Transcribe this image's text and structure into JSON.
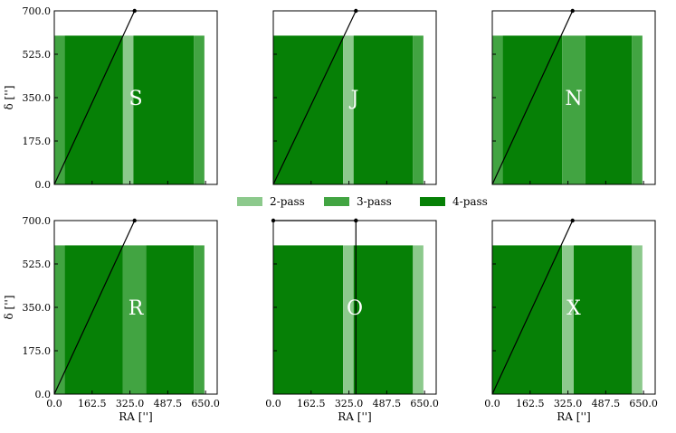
{
  "colors": {
    "two_pass": "#8cc98c",
    "three_pass": "#42a442",
    "four_pass": "#068006",
    "background": "#ffffff",
    "line": "#000000"
  },
  "legend": [
    {
      "label": "2-pass",
      "color": "#8cc98c"
    },
    {
      "label": "3-pass",
      "color": "#42a442"
    },
    {
      "label": "4-pass",
      "color": "#068006"
    }
  ],
  "chart_data": {
    "type": "area",
    "xlabel": "RA ['']",
    "ylabel": "δ ['']",
    "xlim": [
      0,
      700
    ],
    "ylim": [
      0,
      700
    ],
    "xticks": [
      "0.0",
      "162.5",
      "325.0",
      "487.5",
      "650.0"
    ],
    "yticks": [
      "0.0",
      "175.0",
      "350.0",
      "525.0",
      "700.0"
    ],
    "panels": [
      {
        "letter": "S",
        "fill_top": 600,
        "bands": [
          {
            "x0": 0,
            "x1": 45,
            "pass": 3
          },
          {
            "x0": 45,
            "x1": 295,
            "pass": 4
          },
          {
            "x0": 295,
            "x1": 340,
            "pass": 2
          },
          {
            "x0": 340,
            "x1": 600,
            "pass": 4
          },
          {
            "x0": 600,
            "x1": 645,
            "pass": 3
          }
        ],
        "line": [
          [
            0,
            0
          ],
          [
            345,
            700
          ]
        ]
      },
      {
        "letter": "J",
        "fill_top": 600,
        "bands": [
          {
            "x0": 0,
            "x1": 300,
            "pass": 4
          },
          {
            "x0": 300,
            "x1": 345,
            "pass": 2
          },
          {
            "x0": 345,
            "x1": 600,
            "pass": 4
          },
          {
            "x0": 600,
            "x1": 645,
            "pass": 3
          }
        ],
        "line": [
          [
            0,
            0
          ],
          [
            355,
            700
          ]
        ]
      },
      {
        "letter": "N",
        "fill_top": 600,
        "bands": [
          {
            "x0": 0,
            "x1": 45,
            "pass": 3
          },
          {
            "x0": 45,
            "x1": 300,
            "pass": 4
          },
          {
            "x0": 300,
            "x1": 400,
            "pass": 3
          },
          {
            "x0": 400,
            "x1": 600,
            "pass": 4
          },
          {
            "x0": 600,
            "x1": 645,
            "pass": 3
          }
        ],
        "line": [
          [
            0,
            0
          ],
          [
            345,
            700
          ]
        ]
      },
      {
        "letter": "R",
        "fill_top": 600,
        "bands": [
          {
            "x0": 0,
            "x1": 45,
            "pass": 3
          },
          {
            "x0": 45,
            "x1": 295,
            "pass": 4
          },
          {
            "x0": 295,
            "x1": 395,
            "pass": 3
          },
          {
            "x0": 395,
            "x1": 600,
            "pass": 4
          },
          {
            "x0": 600,
            "x1": 645,
            "pass": 3
          }
        ],
        "line": [
          [
            0,
            0
          ],
          [
            345,
            700
          ]
        ]
      },
      {
        "letter": "O",
        "fill_top": 600,
        "bands": [
          {
            "x0": 0,
            "x1": 300,
            "pass": 4
          },
          {
            "x0": 300,
            "x1": 345,
            "pass": 2
          },
          {
            "x0": 345,
            "x1": 600,
            "pass": 4
          },
          {
            "x0": 600,
            "x1": 645,
            "pass": 2
          }
        ],
        "line": [
          [
            355,
            0
          ],
          [
            355,
            700
          ]
        ],
        "line2": [
          [
            0,
            700
          ],
          [
            355,
            700
          ]
        ]
      },
      {
        "letter": "X",
        "fill_top": 600,
        "bands": [
          {
            "x0": 0,
            "x1": 300,
            "pass": 4
          },
          {
            "x0": 300,
            "x1": 350,
            "pass": 2
          },
          {
            "x0": 350,
            "x1": 600,
            "pass": 4
          },
          {
            "x0": 600,
            "x1": 645,
            "pass": 2
          }
        ],
        "line": [
          [
            0,
            0
          ],
          [
            345,
            700
          ]
        ]
      }
    ]
  }
}
